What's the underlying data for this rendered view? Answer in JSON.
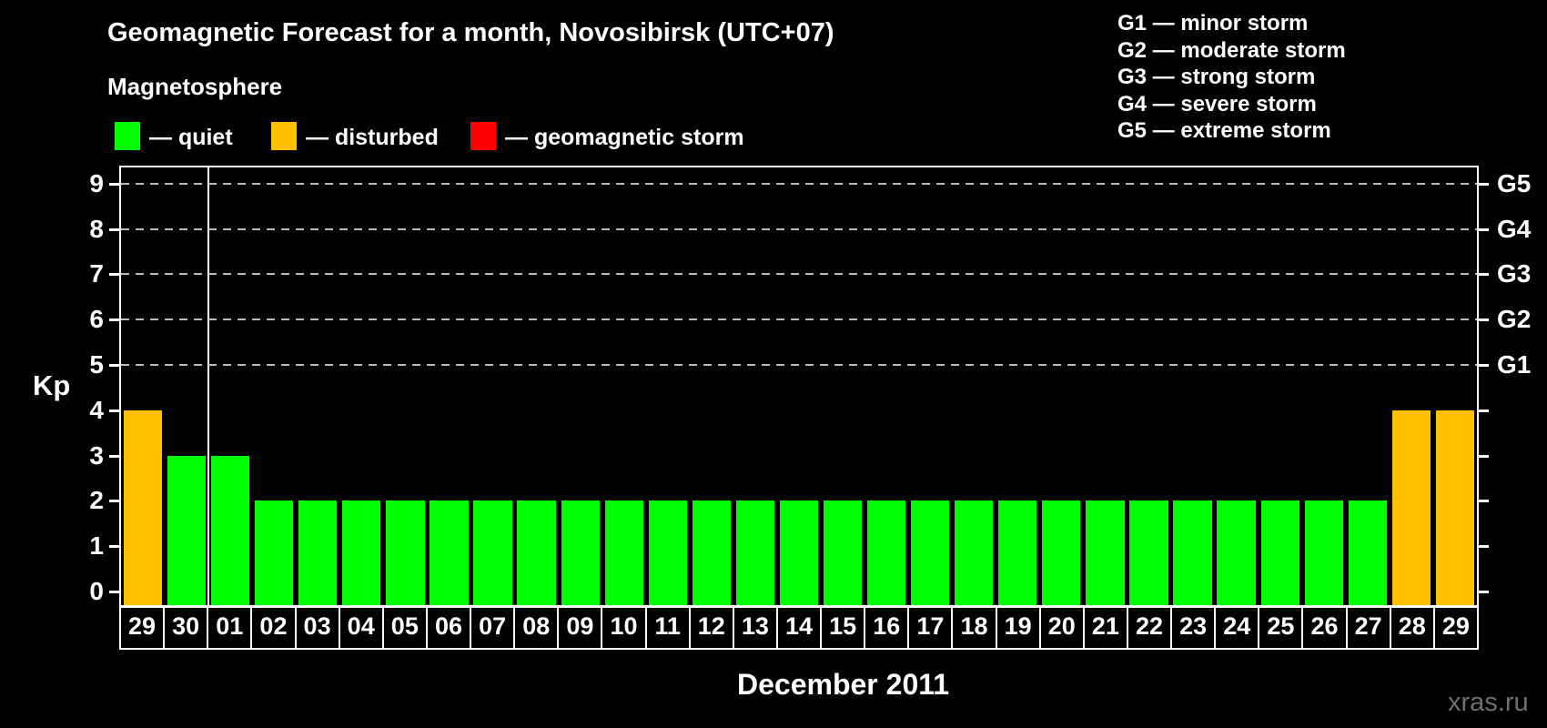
{
  "header": {
    "title": "Geomagnetic Forecast for a month, Novosibirsk (UTC+07)",
    "subtitle": "Magnetosphere"
  },
  "legend": {
    "quiet_label": "— quiet",
    "disturbed_label": "— disturbed",
    "storm_label": "— geomagnetic storm"
  },
  "g_legend": [
    "G1 — minor storm",
    "G2 — moderate storm",
    "G3 — strong storm",
    "G4 — severe storm",
    "G5 — extreme storm"
  ],
  "colors": {
    "quiet": "#00ff00",
    "disturbed": "#ffc000",
    "storm": "#ff0000",
    "gridline": "#b9b9b9",
    "axis": "#ffffff",
    "watermark_text": "#6f6f6f"
  },
  "axes": {
    "y_label": "Kp",
    "y_ticks": [
      0,
      1,
      2,
      3,
      4,
      5,
      6,
      7,
      8,
      9
    ],
    "right_axis_labels": {
      "5": "G1",
      "6": "G2",
      "7": "G3",
      "8": "G4",
      "9": "G5"
    },
    "x_title": "December 2011"
  },
  "watermark": "xras.ru",
  "chart_data": {
    "type": "bar",
    "title": "Geomagnetic Forecast for a month, Novosibirsk (UTC+07)",
    "xlabel": "December 2011",
    "ylabel": "Kp",
    "ylim": [
      0,
      9
    ],
    "grid": "dashed horizontal lines at Kp 5-9 only",
    "legend_position": "top-left (quiet/disturbed/storm), top-right (G1-G5 scale)",
    "categories": [
      "29",
      "30",
      "01",
      "02",
      "03",
      "04",
      "05",
      "06",
      "07",
      "08",
      "09",
      "10",
      "11",
      "12",
      "13",
      "14",
      "15",
      "16",
      "17",
      "18",
      "19",
      "20",
      "21",
      "22",
      "23",
      "24",
      "25",
      "26",
      "27",
      "28",
      "29"
    ],
    "values": [
      4,
      3,
      3,
      2,
      2,
      2,
      2,
      2,
      2,
      2,
      2,
      2,
      2,
      2,
      2,
      2,
      2,
      2,
      2,
      2,
      2,
      2,
      2,
      2,
      2,
      2,
      2,
      2,
      2,
      4,
      4
    ],
    "statuses": [
      "disturbed",
      "quiet",
      "quiet",
      "quiet",
      "quiet",
      "quiet",
      "quiet",
      "quiet",
      "quiet",
      "quiet",
      "quiet",
      "quiet",
      "quiet",
      "quiet",
      "quiet",
      "quiet",
      "quiet",
      "quiet",
      "quiet",
      "quiet",
      "quiet",
      "quiet",
      "quiet",
      "quiet",
      "quiet",
      "quiet",
      "quiet",
      "quiet",
      "quiet",
      "disturbed",
      "disturbed"
    ],
    "month_boundary_after_index": 1,
    "note_first_two_days_are_previous_month": true
  }
}
